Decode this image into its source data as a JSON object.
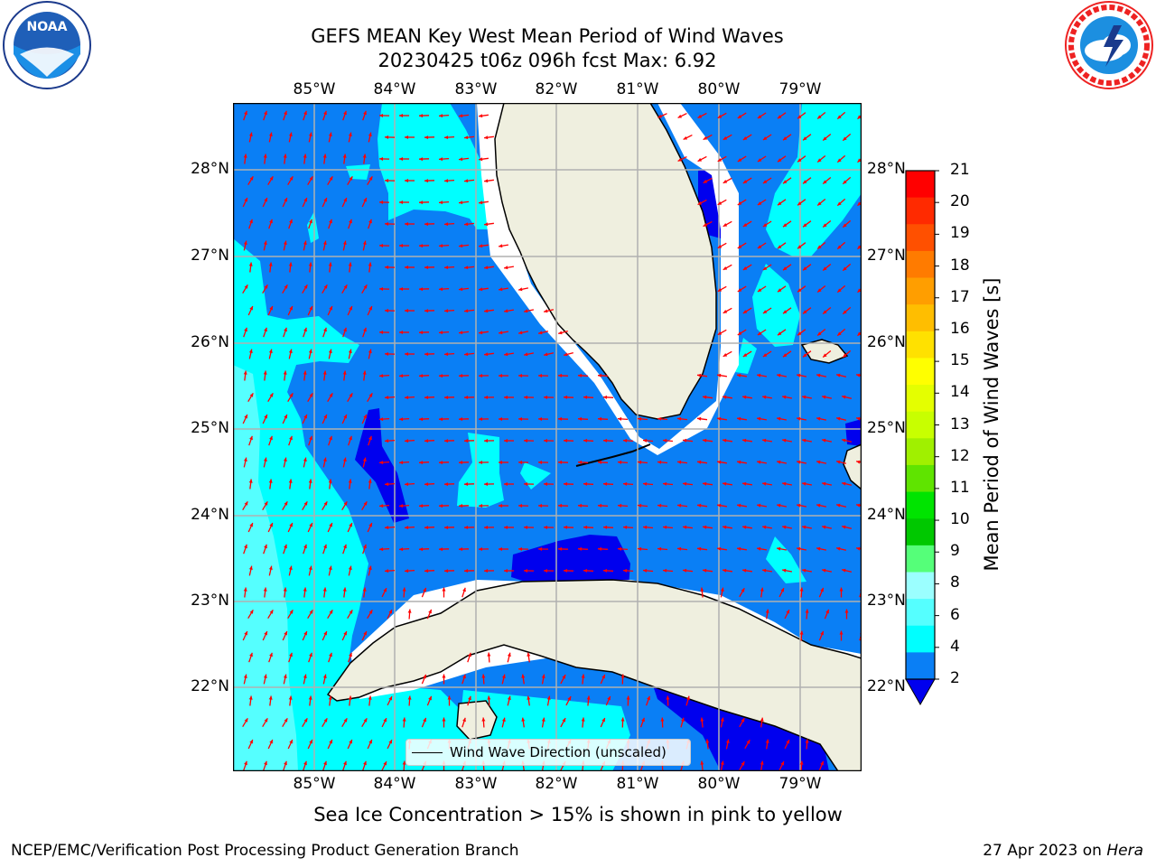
{
  "header": {
    "title_line1": "GEFS MEAN Key West Mean Period of Wind Waves",
    "title_line2": "20230425 t06z 096h fcst   Max: 6.92"
  },
  "logos": {
    "left": {
      "text": "NOAA",
      "ring_text": "NATIONAL OCEANIC AND ATMOSPHERIC ADMINISTRATION · U.S. DEPARTMENT OF COMMERCE"
    },
    "right": {
      "ring_text": "NATIONAL WEATHER SERVICE"
    }
  },
  "map": {
    "lon_labels": [
      "85°W",
      "84°W",
      "83°W",
      "82°W",
      "81°W",
      "80°W",
      "79°W"
    ],
    "lat_labels": [
      "28°N",
      "27°N",
      "26°N",
      "25°N",
      "24°N",
      "23°N",
      "22°N"
    ],
    "colors": {
      "ocean_bin_2_4": "#0a7ff5",
      "ocean_bin_4_6": "#00ffff",
      "ocean_bin_6_8": "#55ffff",
      "ocean_below_2": "#0000ee",
      "land": "#efefdf",
      "arrow": "#ff0000",
      "grid": "#b0b0b0",
      "ice_mask": "#ffffff"
    },
    "legend_label": "Wind Wave Direction (unscaled)"
  },
  "colorbar": {
    "label": "Mean Period of Wind Waves [s]",
    "ticks": [
      "21",
      "20",
      "19",
      "18",
      "17",
      "16",
      "15",
      "14",
      "13",
      "12",
      "11",
      "10",
      "9",
      "8",
      "6",
      "4",
      "2"
    ],
    "bin_colors": [
      "#ff0000",
      "#ff2a00",
      "#ff5000",
      "#ff7b00",
      "#ff9e00",
      "#ffbe00",
      "#ffe100",
      "#ffff00",
      "#e4ff00",
      "#c8ff00",
      "#a0f000",
      "#5fe400",
      "#00e400",
      "#00c800",
      "#55ff79",
      "#9bffff",
      "#55ffff",
      "#00ffff",
      "#0a7ff5"
    ],
    "under_color": "#0000ee"
  },
  "notes": {
    "sea_ice": "Sea Ice Concentration > 15% is shown in pink to yellow"
  },
  "footer": {
    "left": "NCEP/EMC/Verification Post Processing Product Generation Branch",
    "date": "27 Apr 2023 on",
    "machine": "Hera"
  }
}
